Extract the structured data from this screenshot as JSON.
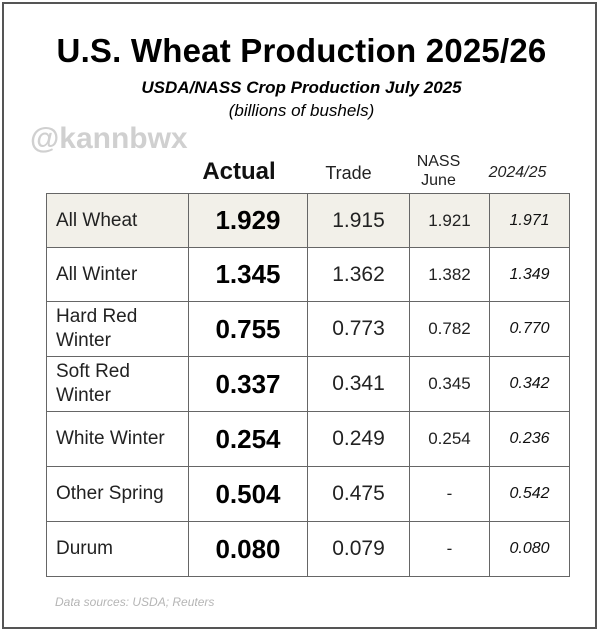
{
  "title": "U.S. Wheat Production 2025/26",
  "subtitle": "USDA/NASS Crop Production July 2025",
  "units": "(billions of bushels)",
  "watermark": "@kannbwx",
  "columns": {
    "actual": "Actual",
    "trade": "Trade",
    "nass": "NASS June",
    "prev": "2024/25"
  },
  "rows": [
    {
      "label": "All Wheat",
      "actual": "1.929",
      "trade": "1.915",
      "nass": "1.921",
      "prev": "1.971"
    },
    {
      "label": "All Winter",
      "actual": "1.345",
      "trade": "1.362",
      "nass": "1.382",
      "prev": "1.349"
    },
    {
      "label": "Hard Red Winter",
      "actual": "0.755",
      "trade": "0.773",
      "nass": "0.782",
      "prev": "0.770"
    },
    {
      "label": "Soft Red Winter",
      "actual": "0.337",
      "trade": "0.341",
      "nass": "0.345",
      "prev": "0.342"
    },
    {
      "label": "White Winter",
      "actual": "0.254",
      "trade": "0.249",
      "nass": "0.254",
      "prev": "0.236"
    },
    {
      "label": "Other Spring",
      "actual": "0.504",
      "trade": "0.475",
      "nass": "-",
      "prev": "0.542"
    },
    {
      "label": "Durum",
      "actual": "0.080",
      "trade": "0.079",
      "nass": "-",
      "prev": "0.080"
    }
  ],
  "source": "Data sources: USDA; Reuters",
  "colors": {
    "highlight_row": "#f2f0e9",
    "border": "#666666",
    "watermark": "#c8c8c8"
  }
}
